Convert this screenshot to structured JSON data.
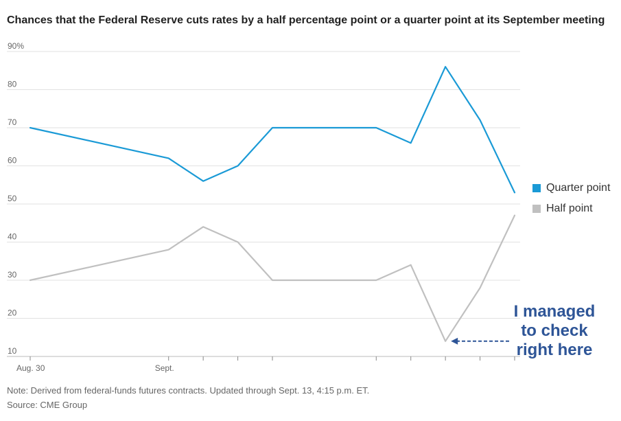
{
  "title": "Chances that the Federal Reserve cuts rates by a half percentage point or a quarter point at its September meeting",
  "note": "Note: Derived from federal-funds futures contracts. Updated through Sept. 13, 4:15 p.m. ET.",
  "source": "Source: CME Group",
  "annotation": {
    "lines": [
      "I managed",
      "to check",
      "right here"
    ],
    "color": "#2e5597"
  },
  "chart_data": {
    "type": "line",
    "y_tick_labels": [
      "90%",
      "80",
      "70",
      "60",
      "50",
      "40",
      "30",
      "20",
      "10"
    ],
    "y_ticks": [
      90,
      80,
      70,
      60,
      50,
      40,
      30,
      20,
      10
    ],
    "ylim": [
      10,
      90
    ],
    "x_tick_labels": [
      {
        "label": "Aug. 30",
        "date": "2024-08-30"
      },
      {
        "label": "Sept.",
        "date": "2024-09-03"
      }
    ],
    "x": [
      "2024-08-30",
      "2024-09-03",
      "2024-09-04",
      "2024-09-05",
      "2024-09-06",
      "2024-09-09",
      "2024-09-10",
      "2024-09-11",
      "2024-09-12",
      "2024-09-13"
    ],
    "series": [
      {
        "name": "Quarter point",
        "color": "#1a9ad6",
        "values": [
          70,
          62,
          56,
          60,
          70,
          70,
          66,
          86,
          72,
          53
        ]
      },
      {
        "name": "Half point",
        "color": "#c0c0c0",
        "values": [
          30,
          38,
          44,
          40,
          30,
          30,
          34,
          14,
          28,
          47
        ]
      }
    ],
    "grid": true,
    "legend": "right"
  }
}
